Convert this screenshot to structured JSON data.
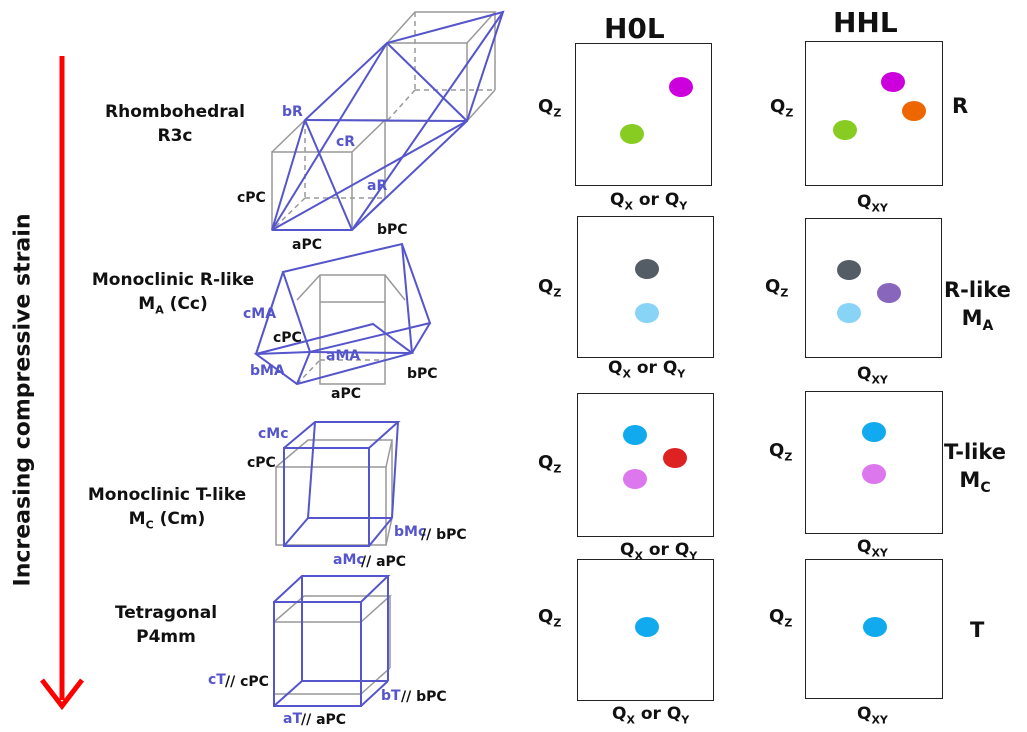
{
  "axis": {
    "strain_label": "Increasing compressive strain",
    "arrow_color": "#ff0000"
  },
  "headers": {
    "h0l": "H0L",
    "hhl": "HHL"
  },
  "labels": {
    "qz": "Q",
    "qz_sub": "Z",
    "h0l_x_1": "Q",
    "h0l_x_sub1": "X",
    "h0l_x_mid": " or Q",
    "h0l_x_sub2": "Y",
    "hhl_x": "Q",
    "hhl_x_sub": "XY"
  },
  "phases": [
    {
      "name_line1": "Rhombohedral",
      "name_line2": "R3c",
      "tag": "R",
      "tag_sub": "",
      "tag_line2": "",
      "tag_line2_sub": ""
    },
    {
      "name_line1": "Monoclinic R-like",
      "name_line2": "M",
      "name_line2_sub": "A",
      "name_line2_rest": " (Cc)",
      "tag": "R-like",
      "tag_line2": "M",
      "tag_line2_sub": "A"
    },
    {
      "name_line1": "Monoclinic T-like",
      "name_line2": "M",
      "name_line2_sub": "C",
      "name_line2_rest": " (Cm)",
      "tag": "T-like",
      "tag_line2": "M",
      "tag_line2_sub": "C"
    },
    {
      "name_line1": "Tetragonal",
      "name_line2": "P4mm",
      "tag": "T"
    }
  ],
  "lattice_labels": {
    "rhombo": {
      "bR": "bR",
      "cR": "cR",
      "aR": "aR",
      "cPC": "cPC",
      "bPC": "bPC",
      "aPC": "aPC"
    },
    "ma": {
      "cMA": "cMA",
      "cPC": "cPC",
      "aMA": "aMA",
      "bMA": "bMA",
      "bPC": "bPC",
      "aPC": "aPC"
    },
    "mc": {
      "cMc": "cMc",
      "cPC": "cPC",
      "bMc": "bMc",
      "bPC": "// bPC",
      "aMc": "aMc",
      "aPC": "// aPC"
    },
    "tet": {
      "cT": "cT",
      "cPC": "// cPC",
      "bT": "bT",
      "bPC": "// bPC",
      "aT": "aT",
      "aPC": "// aPC"
    }
  },
  "colors": {
    "lattice_blue": "#5555cc",
    "pc_gray": "#999999",
    "green": "#88cc22",
    "magenta": "#cc00dd",
    "orange": "#ee6600",
    "darkgray": "#545d66",
    "lightblue": "#88d4f6",
    "purple": "#8866bb",
    "cyan": "#11aaee",
    "red": "#dd2222",
    "pink": "#dd77ee"
  }
}
